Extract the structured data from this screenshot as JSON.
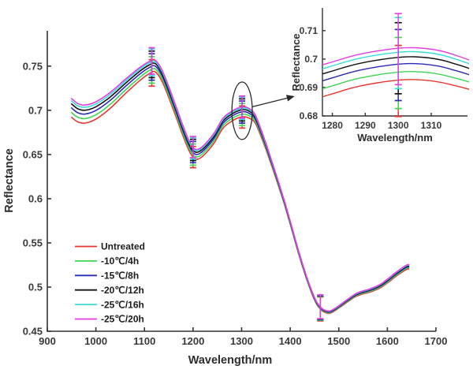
{
  "figure": {
    "background": "#ffffff",
    "axis_color": "#333333"
  },
  "chart_data": {
    "type": "line",
    "title": "",
    "xlabel": "Wavelength/nm",
    "ylabel": "Reflectance",
    "xlim": [
      900,
      1700
    ],
    "ylim": [
      0.45,
      0.79
    ],
    "xticks": [
      900,
      1000,
      1100,
      1200,
      1300,
      1400,
      1500,
      1600,
      1700
    ],
    "xtick_labels": [
      "900",
      "1000",
      "1100",
      "1200",
      "1300",
      "1400",
      "1500",
      "1600",
      "1700"
    ],
    "yticks": [
      0.45,
      0.5,
      0.55,
      0.6,
      0.65,
      0.7,
      0.75
    ],
    "ytick_labels": [
      "0.45",
      "0.5",
      "0.55",
      "0.6",
      "0.65",
      "0.7",
      "0.75"
    ],
    "grid": false,
    "legend": {
      "position": "lower-left",
      "entries": [
        "Untreated",
        "-10℃/4h",
        "-15℃/8h",
        "-20℃/12h",
        "-25℃/16h",
        "-25℃/20h"
      ]
    },
    "series": [
      {
        "name": "Untreated",
        "color": "#e8362e",
        "offset": 0
      },
      {
        "name": "-10℃/4h",
        "color": "#3fd656",
        "offset": 0.0028
      },
      {
        "name": "-15℃/8h",
        "color": "#2b2bb4",
        "offset": 0.0056
      },
      {
        "name": "-20℃/12h",
        "color": "#111111",
        "offset": 0.008
      },
      {
        "name": "-25℃/16h",
        "color": "#38dcdc",
        "offset": 0.0098
      },
      {
        "name": "-25℃/20h",
        "color": "#e23ee2",
        "offset": 0.0112
      }
    ],
    "base_curve_untreated": [
      [
        950,
        0.692
      ],
      [
        963,
        0.6868
      ],
      [
        978,
        0.6856
      ],
      [
        1000,
        0.69
      ],
      [
        1030,
        0.7025
      ],
      [
        1060,
        0.7185
      ],
      [
        1090,
        0.7335
      ],
      [
        1110,
        0.7415
      ],
      [
        1122,
        0.7435
      ],
      [
        1136,
        0.733
      ],
      [
        1150,
        0.7145
      ],
      [
        1164,
        0.694
      ],
      [
        1178,
        0.673
      ],
      [
        1190,
        0.6565
      ],
      [
        1199,
        0.6475
      ],
      [
        1206,
        0.6445
      ],
      [
        1215,
        0.646
      ],
      [
        1228,
        0.6525
      ],
      [
        1244,
        0.6635
      ],
      [
        1262,
        0.68
      ],
      [
        1282,
        0.6885
      ],
      [
        1294,
        0.6917
      ],
      [
        1305,
        0.6928
      ],
      [
        1316,
        0.691
      ],
      [
        1328,
        0.6855
      ],
      [
        1342,
        0.6675
      ],
      [
        1358,
        0.6435
      ],
      [
        1374,
        0.6175
      ],
      [
        1390,
        0.59
      ],
      [
        1404,
        0.5635
      ],
      [
        1418,
        0.5365
      ],
      [
        1432,
        0.512
      ],
      [
        1444,
        0.4935
      ],
      [
        1454,
        0.481
      ],
      [
        1463,
        0.4745
      ],
      [
        1472,
        0.4712
      ],
      [
        1482,
        0.4705
      ],
      [
        1494,
        0.474
      ],
      [
        1506,
        0.4785
      ],
      [
        1520,
        0.484
      ],
      [
        1534,
        0.489
      ],
      [
        1546,
        0.4917
      ],
      [
        1560,
        0.4937
      ],
      [
        1574,
        0.4963
      ],
      [
        1588,
        0.5
      ],
      [
        1602,
        0.5055
      ],
      [
        1616,
        0.5115
      ],
      [
        1628,
        0.516
      ],
      [
        1638,
        0.5195
      ],
      [
        1644,
        0.5205
      ]
    ],
    "series_offset_taper": [
      [
        950,
        1.9
      ],
      [
        1000,
        1.75
      ],
      [
        1050,
        1.5
      ],
      [
        1100,
        1.27
      ],
      [
        1122,
        1.17
      ],
      [
        1150,
        1.1
      ],
      [
        1180,
        1.03
      ],
      [
        1206,
        1.0
      ],
      [
        1250,
        1.0
      ],
      [
        1305,
        1.0
      ],
      [
        1316,
        0.97
      ],
      [
        1330,
        0.82
      ],
      [
        1345,
        0.65
      ],
      [
        1360,
        0.52
      ],
      [
        1375,
        0.42
      ],
      [
        1390,
        0.35
      ],
      [
        1410,
        0.28
      ],
      [
        1435,
        0.25
      ],
      [
        1460,
        0.23
      ],
      [
        1485,
        0.22
      ],
      [
        1510,
        0.25
      ],
      [
        1540,
        0.29
      ],
      [
        1570,
        0.33
      ],
      [
        1600,
        0.38
      ],
      [
        1625,
        0.42
      ],
      [
        1644,
        0.45
      ]
    ],
    "error_bars": [
      {
        "x": 1115,
        "delta": 0.015
      },
      {
        "x": 1200,
        "delta": 0.012
      },
      {
        "x": 1301,
        "delta": 0.0125
      },
      {
        "x": 1462,
        "delta": 0.0135
      }
    ],
    "inset": {
      "xlabel": "Wavelength/nm",
      "ylabel": "Reflectance",
      "xlim": [
        1277,
        1321
      ],
      "ylim": [
        0.68,
        0.718
      ],
      "xticks": [
        1280,
        1290,
        1300,
        1310
      ],
      "xtick_labels": [
        "1280",
        "1290",
        "1300",
        "1310"
      ],
      "yticks": [
        0.68,
        0.69,
        0.7,
        0.71
      ],
      "ytick_labels": [
        "0.68",
        "0.69",
        "0.7",
        "0.71"
      ],
      "error_bars": [
        {
          "x": 1300,
          "delta": 0.0125
        }
      ]
    },
    "annotation": {
      "ellipse": {
        "x": 1301,
        "y": 0.6995,
        "rx": 21,
        "ry": 0.0325
      },
      "arrow": {
        "x1": 1322,
        "y1": 0.704,
        "x2": 1406,
        "y2": 0.7155
      }
    }
  }
}
